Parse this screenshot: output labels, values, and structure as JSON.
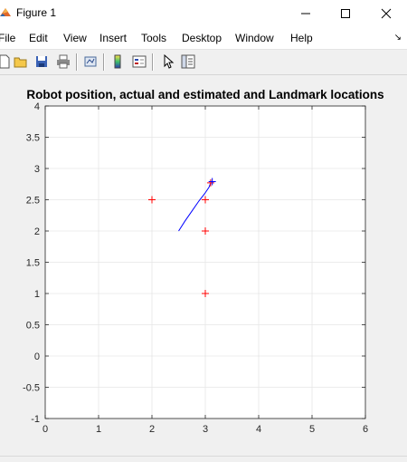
{
  "window": {
    "title": "Figure 1",
    "controls": [
      "minimize",
      "maximize",
      "close"
    ]
  },
  "menu": {
    "items": [
      "File",
      "Edit",
      "View",
      "Insert",
      "Tools",
      "Desktop",
      "Window",
      "Help"
    ]
  },
  "toolbar": {
    "buttons": [
      "new-figure-icon",
      "open-file-icon",
      "save-icon",
      "print-icon",
      "link-plot-icon",
      "colorbar-icon",
      "legend-icon",
      "pointer-icon",
      "property-editor-icon"
    ]
  },
  "chart_data": {
    "type": "scatter",
    "title": "Robot position, actual and estimated and Landmark locations",
    "xlim": [
      0,
      6
    ],
    "ylim": [
      -1,
      4
    ],
    "x_ticks": [
      "0",
      "1",
      "2",
      "3",
      "4",
      "5",
      "6"
    ],
    "y_ticks": [
      "-1",
      "-0.5",
      "0",
      "0.5",
      "1",
      "1.5",
      "2",
      "2.5",
      "3",
      "3.5",
      "4"
    ],
    "grid": true,
    "series": [
      {
        "type": "line",
        "color": "#0000ff",
        "x": [
          2.5,
          2.62,
          2.75,
          2.88,
          2.99,
          3.07,
          3.1
        ],
        "y": [
          2.0,
          2.16,
          2.32,
          2.48,
          2.6,
          2.7,
          2.77
        ]
      },
      {
        "type": "marker",
        "marker": "+",
        "color": "#ff0000",
        "x": [
          2.0,
          3.0,
          3.0,
          3.0,
          3.1
        ],
        "y": [
          2.5,
          2.5,
          2.0,
          1.0,
          2.77
        ]
      },
      {
        "type": "marker",
        "marker": "+",
        "color": "#0000ff",
        "x": [
          3.13
        ],
        "y": [
          2.79
        ]
      }
    ]
  }
}
